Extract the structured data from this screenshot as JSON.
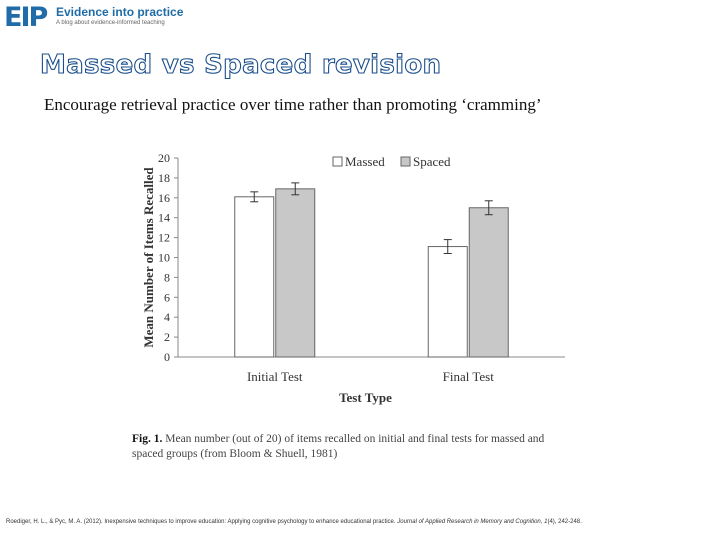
{
  "header": {
    "logo_mark": "EIP",
    "logo_title": "Evidence into practice",
    "logo_subtitle": "A blog about evidence-informed teaching"
  },
  "slide": {
    "title": "Massed vs Spaced revision",
    "subtitle": "Encourage retrieval practice over time rather than promoting ‘cramming’"
  },
  "caption": {
    "label": "Fig. 1.",
    "text": "Mean number (out of 20) of items recalled on initial and final tests for massed and spaced groups (from Bloom & Shuell, 1981)"
  },
  "reference": {
    "text": "Roediger, H. L., & Pyc, M. A. (2012). Inexpensive techniques to improve education: Applying cognitive psychology to enhance educational practice.",
    "journal": "Journal of Applied Research in Memory and Cognition, 1",
    "pages": "(4), 242-248."
  },
  "colors": {
    "massed": "#ffffff",
    "spaced": "#c8c8c8",
    "title_stroke": "#1b4f8a",
    "logo": "#1f6ca8"
  },
  "chart_data": {
    "type": "bar",
    "title": "",
    "xlabel": "Test Type",
    "ylabel": "Mean Number of Items Recalled",
    "categories": [
      "Initial Test",
      "Final Test"
    ],
    "series": [
      {
        "name": "Massed",
        "values": [
          16.1,
          11.1
        ],
        "errors": [
          0.5,
          0.7
        ]
      },
      {
        "name": "Spaced",
        "values": [
          16.9,
          15.0
        ],
        "errors": [
          0.6,
          0.7
        ]
      }
    ],
    "ylim": [
      0,
      20
    ],
    "yticks": [
      0,
      2,
      4,
      6,
      8,
      10,
      12,
      14,
      16,
      18,
      20
    ],
    "legend": "top-right",
    "grid": false
  }
}
